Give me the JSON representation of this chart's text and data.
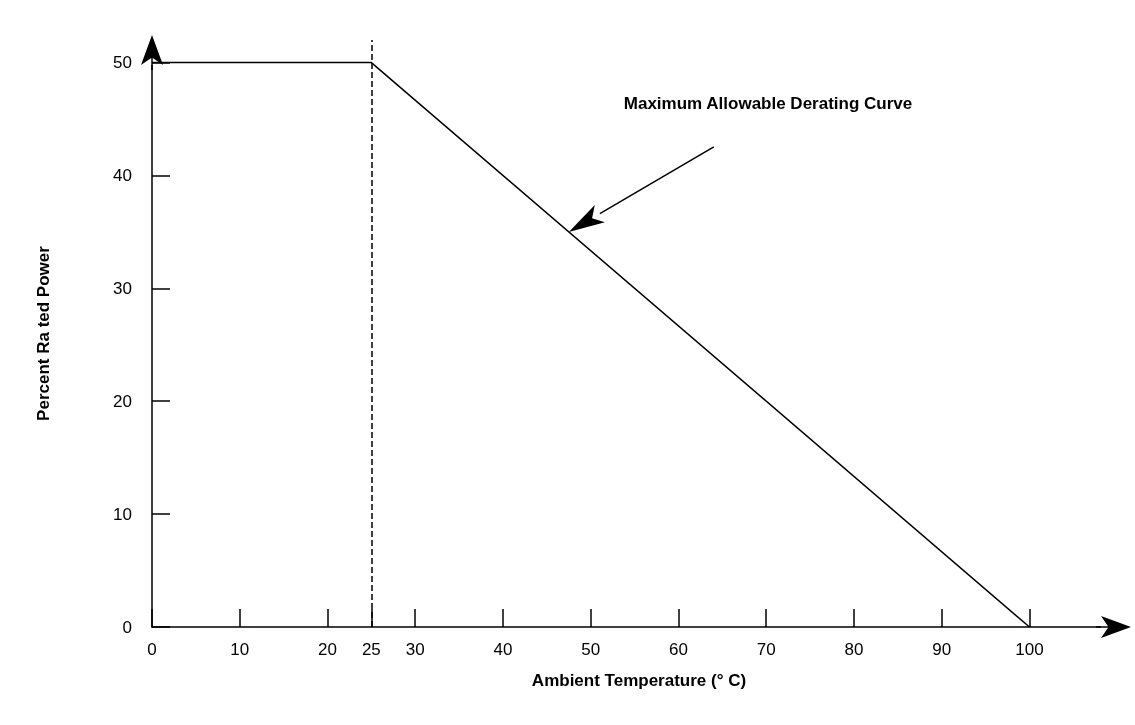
{
  "chart_data": {
    "type": "line",
    "xlabel": "Ambient Temperature (° C)",
    "ylabel": "Percent Ra ted Power",
    "x": [
      0,
      25,
      100
    ],
    "series": [
      {
        "color": "#000000",
        "values": [
          50,
          50,
          0
        ]
      }
    ],
    "xlim": [
      0,
      111
    ],
    "xticks": [
      0,
      10,
      20,
      25,
      30,
      40,
      50,
      60,
      70,
      80,
      90,
      100
    ],
    "ylim": [
      0,
      52
    ],
    "yticks": [
      0,
      10,
      20,
      30,
      40,
      50
    ],
    "ref_lines": [
      {
        "axis": "x",
        "value": 25,
        "color": "#000000",
        "line_style": "dashed"
      }
    ],
    "annotations": [
      "Maximum Allowable Derating Curve"
    ],
    "grid": false,
    "marker": "none",
    "line_style": "solid"
  }
}
